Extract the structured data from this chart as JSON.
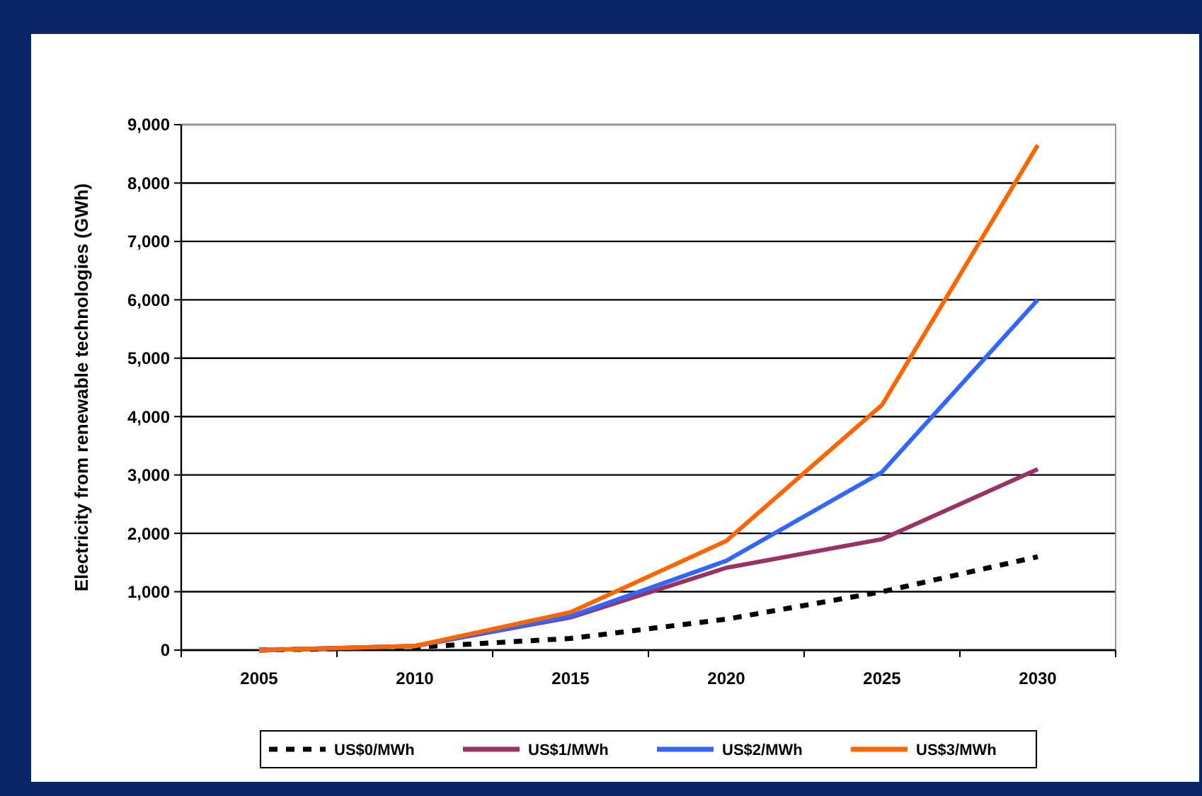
{
  "chart_data": {
    "type": "line",
    "ylabel": "Electricity from renewable technologies (GWh)",
    "categories": [
      "2005",
      "2010",
      "2015",
      "2020",
      "2025",
      "2030"
    ],
    "ylim": [
      0,
      9000
    ],
    "yticks": [
      {
        "value": 0,
        "label": "0"
      },
      {
        "value": 1000,
        "label": "1,000"
      },
      {
        "value": 2000,
        "label": "2,000"
      },
      {
        "value": 3000,
        "label": "3,000"
      },
      {
        "value": 4000,
        "label": "4,000"
      },
      {
        "value": 5000,
        "label": "5,000"
      },
      {
        "value": 6000,
        "label": "6,000"
      },
      {
        "value": 7000,
        "label": "7,000"
      },
      {
        "value": 8000,
        "label": "8,000"
      },
      {
        "value": 9000,
        "label": "9,000"
      }
    ],
    "grid": "y",
    "legend": "bottom",
    "series": [
      {
        "name": "US$0/MWh",
        "color": "#000000",
        "line_style": "dashed",
        "values": [
          0,
          50,
          200,
          530,
          1000,
          1600
        ]
      },
      {
        "name": "US$1/MWh",
        "color": "#993366",
        "values": [
          0,
          70,
          560,
          1410,
          1900,
          3100
        ]
      },
      {
        "name": "US$2/MWh",
        "color": "#3366ff",
        "values": [
          0,
          70,
          580,
          1530,
          3050,
          6000
        ]
      },
      {
        "name": "US$3/MWh",
        "color": "#ff6600",
        "values": [
          0,
          70,
          650,
          1870,
          4200,
          8650
        ]
      }
    ]
  }
}
